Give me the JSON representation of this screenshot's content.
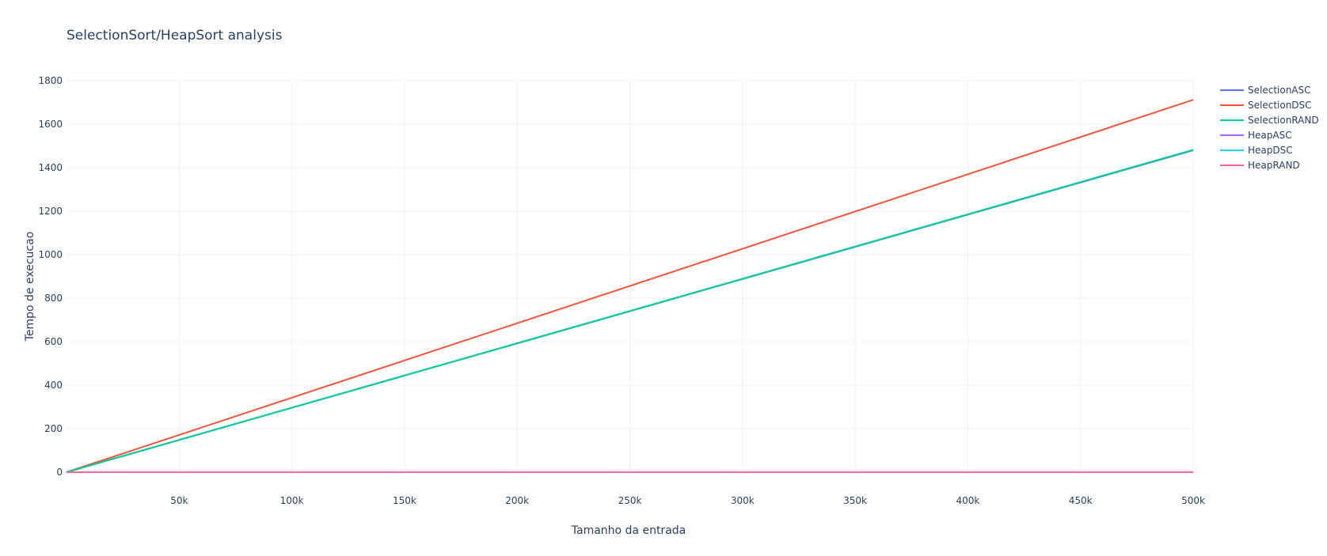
{
  "chart_data": {
    "type": "line",
    "title": "SelectionSort/HeapSort analysis",
    "xlabel": "Tamanho da entrada",
    "ylabel": "Tempo de execucao",
    "xlim": [
      0,
      500000
    ],
    "ylim": [
      0,
      1800
    ],
    "x_ticks": [
      50000,
      100000,
      150000,
      200000,
      250000,
      300000,
      350000,
      400000,
      450000,
      500000
    ],
    "x_tick_labels": [
      "50k",
      "100k",
      "150k",
      "200k",
      "250k",
      "300k",
      "350k",
      "400k",
      "450k",
      "500k"
    ],
    "y_ticks": [
      0,
      200,
      400,
      600,
      800,
      1000,
      1200,
      1400,
      1600,
      1800
    ],
    "y_tick_labels": [
      "0",
      "200",
      "400",
      "600",
      "800",
      "1000",
      "1200",
      "1400",
      "1600",
      "1800"
    ],
    "grid": true,
    "legend_position": "top-right",
    "x": [
      0,
      500000
    ],
    "series": [
      {
        "name": "SelectionASC",
        "values": [
          0,
          1480
        ],
        "color": "#636efa"
      },
      {
        "name": "SelectionDSC",
        "values": [
          0,
          1712
        ],
        "color": "#ef553b"
      },
      {
        "name": "SelectionRAND",
        "values": [
          0,
          1482
        ],
        "color": "#00cc96"
      },
      {
        "name": "HeapASC",
        "values": [
          0,
          0.1
        ],
        "color": "#ab63fa"
      },
      {
        "name": "HeapDSC",
        "values": [
          0,
          0.1
        ],
        "color": "#19d3f3"
      },
      {
        "name": "HeapRAND",
        "values": [
          0,
          0.1
        ],
        "color": "#ff6692"
      }
    ]
  }
}
